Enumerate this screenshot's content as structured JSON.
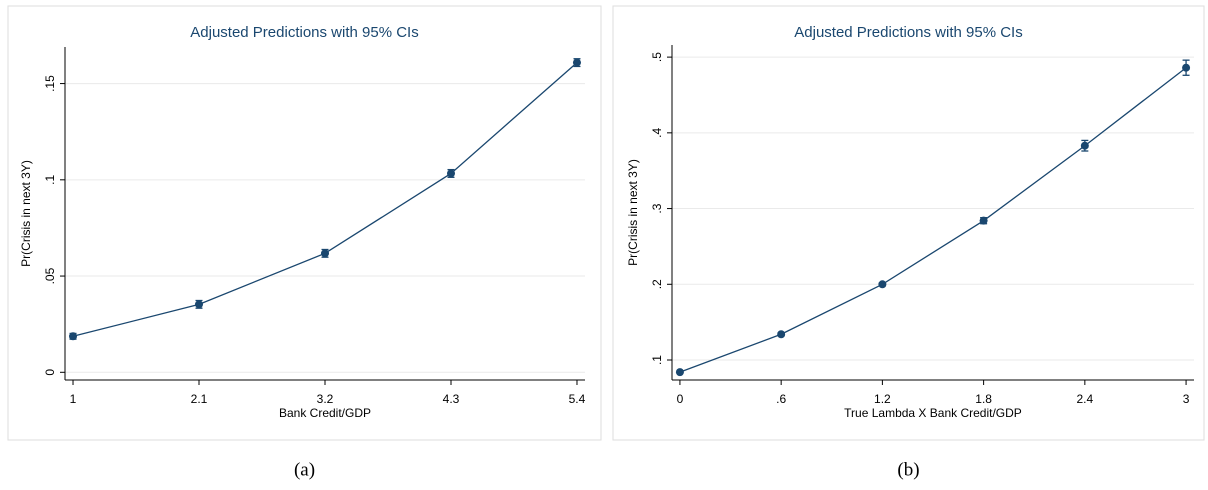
{
  "chart_data": [
    {
      "type": "line",
      "title": "Adjusted Predictions with 95% CIs",
      "x_label": "Bank Credit/GDP",
      "y_label": "Pr(Crisis in next 3Y)",
      "caption": "(a)",
      "x": [
        1,
        2.1,
        3.2,
        4.3,
        5.4
      ],
      "series": [
        {
          "color": "#1a476f",
          "values": [
            0.0187,
            0.0353,
            0.0618,
            0.1033,
            0.1609
          ],
          "errors": [
            0.0015,
            0.002,
            0.002,
            0.002,
            0.002
          ]
        }
      ],
      "xlim": [
        0.93,
        5.47
      ],
      "ylim": [
        -0.004,
        0.169
      ],
      "xticks": [
        1,
        2.1,
        3.2,
        4.3,
        5.4
      ],
      "yticks": [
        0,
        {
          "value": 0.05,
          "label": ".05"
        },
        {
          "value": 0.1,
          "label": ".1"
        },
        {
          "value": 0.15,
          "label": ".15"
        }
      ],
      "grid": true
    },
    {
      "type": "line",
      "title": "Adjusted Predictions with 95% CIs",
      "x_label": "True Lambda X Bank Credit/GDP",
      "y_label": "Pr(Crisis in next 3Y)",
      "caption": "(b)",
      "x": [
        0,
        0.6,
        1.2,
        1.8,
        2.4,
        3
      ],
      "series": [
        {
          "color": "#1a476f",
          "values": [
            0.084,
            0.134,
            0.2,
            0.284,
            0.383,
            0.486
          ],
          "errors": [
            0.001,
            0.002,
            0.002,
            0.004,
            0.007,
            0.01
          ]
        }
      ],
      "xlim": [
        -0.047,
        3.047
      ],
      "ylim": [
        0.0736,
        0.516
      ],
      "xticks": [
        0,
        {
          "value": 0.6,
          "label": ".6"
        },
        1.2,
        1.8,
        2.4,
        3
      ],
      "yticks": [
        {
          "value": 0.1,
          "label": ".1"
        },
        {
          "value": 0.2,
          "label": ".2"
        },
        {
          "value": 0.3,
          "label": ".3"
        },
        {
          "value": 0.4,
          "label": ".4"
        },
        {
          "value": 0.5,
          "label": ".5"
        }
      ],
      "grid": true
    }
  ]
}
